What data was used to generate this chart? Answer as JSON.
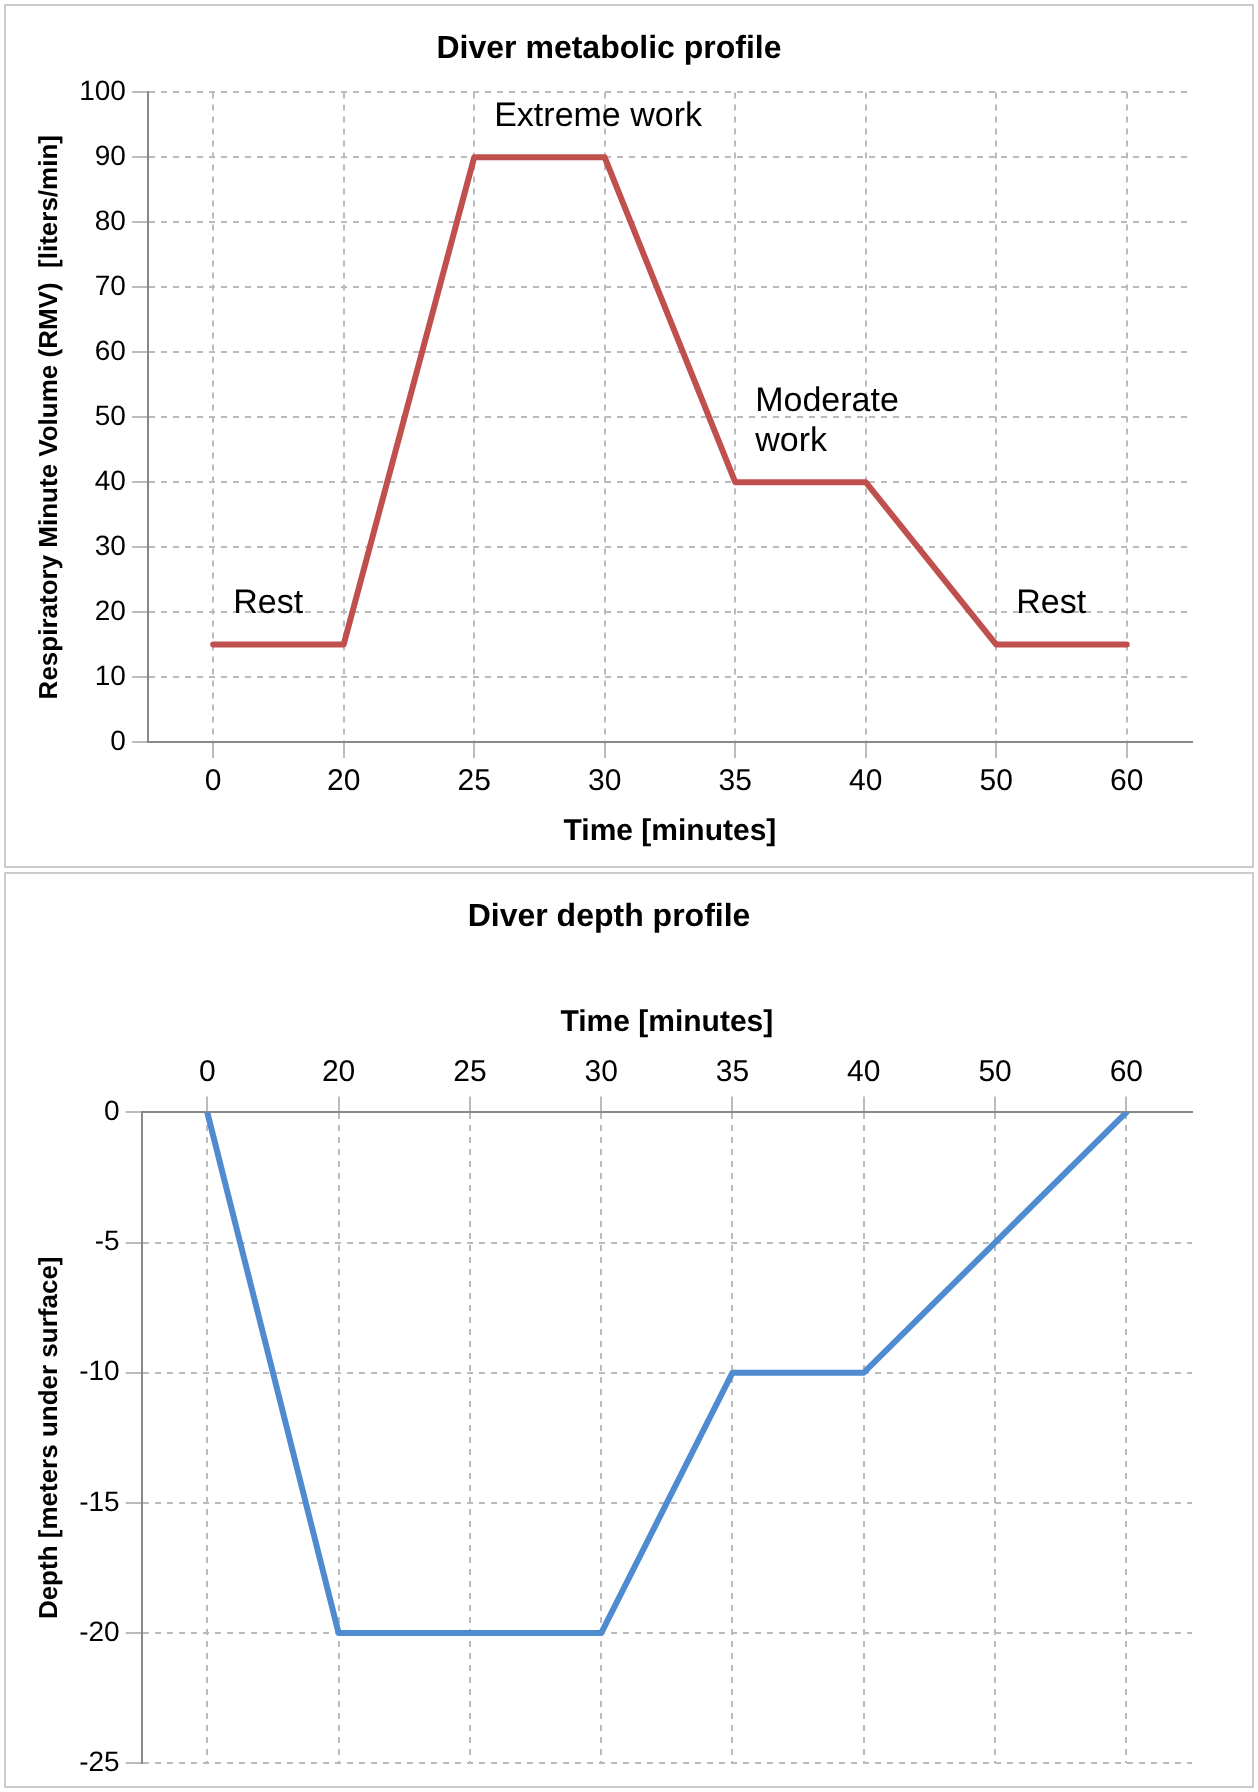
{
  "chart_data": [
    {
      "type": "line",
      "title": "Diver metabolic profile",
      "xlabel": "Time [minutes]",
      "ylabel": "Respiratory Minute Volume (RMV)  [liters/min]",
      "categories": [
        "0",
        "20",
        "25",
        "30",
        "35",
        "40",
        "50",
        "60"
      ],
      "series": [
        {
          "color": "#c0504d",
          "values": [
            15,
            15,
            90,
            90,
            40,
            40,
            15,
            15
          ]
        }
      ],
      "ylim": [
        0,
        100
      ],
      "yticks": [
        0,
        10,
        20,
        30,
        40,
        50,
        60,
        70,
        80,
        90,
        100
      ],
      "grid": true,
      "legend": false,
      "marker": "none",
      "line_style": "solid",
      "annotations": [
        {
          "text": "Rest",
          "x": "0",
          "y": 15
        },
        {
          "text": "Extreme work",
          "x": "25",
          "y": 90
        },
        {
          "text": "Moderate work",
          "x": "35",
          "y": 40
        },
        {
          "text": "Rest",
          "x": "50",
          "y": 15
        }
      ]
    },
    {
      "type": "line",
      "title": "Diver depth profile",
      "xlabel": "Time [minutes]",
      "ylabel": "Depth [meters under surface]",
      "categories": [
        "0",
        "20",
        "25",
        "30",
        "35",
        "40",
        "50",
        "60"
      ],
      "series": [
        {
          "color": "#4f8bd0",
          "values": [
            0,
            -20,
            -20,
            -20,
            -10,
            -10,
            -5,
            0
          ]
        }
      ],
      "ylim": [
        -25,
        0
      ],
      "yticks": [
        -25,
        -20,
        -15,
        -10,
        -5,
        0
      ],
      "grid": true,
      "legend": false,
      "marker": "none",
      "line_style": "solid"
    }
  ]
}
